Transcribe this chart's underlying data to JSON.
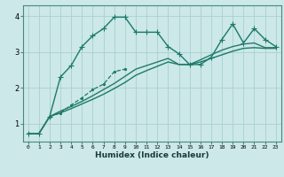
{
  "xlabel": "Humidex (Indice chaleur)",
  "bg_color": "#cce8e8",
  "grid_color": "#aacfcf",
  "xlim": [
    -0.5,
    23.5
  ],
  "ylim": [
    0.5,
    4.3
  ],
  "x_ticks": [
    0,
    1,
    2,
    3,
    4,
    5,
    6,
    7,
    8,
    9,
    10,
    11,
    12,
    13,
    14,
    15,
    16,
    17,
    18,
    19,
    20,
    21,
    22,
    23
  ],
  "y_ticks": [
    1,
    2,
    3,
    4
  ],
  "series": [
    {
      "x": [
        0,
        1,
        2,
        3,
        4,
        5,
        6,
        7,
        8,
        9,
        10,
        11,
        12,
        13,
        14,
        15,
        16,
        17,
        18,
        19,
        20,
        21,
        22,
        23
      ],
      "y": [
        0.72,
        0.72,
        1.2,
        2.3,
        2.62,
        3.15,
        3.45,
        3.65,
        3.97,
        3.97,
        3.55,
        3.55,
        3.55,
        3.15,
        2.95,
        2.65,
        2.65,
        2.85,
        3.35,
        3.78,
        3.25,
        3.65,
        3.35,
        3.15
      ],
      "marker": "+",
      "linestyle": "-",
      "color": "#1a7a6a",
      "linewidth": 1.0,
      "markersize": 4
    },
    {
      "x": [
        2,
        3,
        4,
        5,
        6,
        7,
        8,
        9
      ],
      "y": [
        1.2,
        1.3,
        1.52,
        1.72,
        1.95,
        2.1,
        2.45,
        2.52
      ],
      "marker": ".",
      "linestyle": "--",
      "color": "#1a7a6a",
      "linewidth": 0.9,
      "markersize": 3
    },
    {
      "x": [
        0,
        1,
        2,
        3,
        4,
        5,
        6,
        7,
        8,
        9,
        10,
        11,
        12,
        13,
        14,
        15,
        16,
        17,
        18,
        19,
        20,
        21,
        22,
        23
      ],
      "y": [
        0.72,
        0.72,
        1.2,
        1.3,
        1.42,
        1.55,
        1.68,
        1.82,
        1.98,
        2.15,
        2.35,
        2.48,
        2.6,
        2.72,
        2.65,
        2.65,
        2.72,
        2.82,
        2.92,
        3.02,
        3.1,
        3.12,
        3.1,
        3.1
      ],
      "marker": null,
      "linestyle": "-",
      "color": "#1a7a6a",
      "linewidth": 1.0
    },
    {
      "x": [
        0,
        1,
        2,
        3,
        4,
        5,
        6,
        7,
        8,
        9,
        10,
        11,
        12,
        13,
        14,
        15,
        16,
        17,
        18,
        19,
        20,
        21,
        22,
        23
      ],
      "y": [
        0.72,
        0.72,
        1.2,
        1.35,
        1.48,
        1.62,
        1.78,
        1.95,
        2.12,
        2.32,
        2.52,
        2.62,
        2.72,
        2.82,
        2.65,
        2.65,
        2.78,
        2.92,
        3.05,
        3.15,
        3.22,
        3.25,
        3.12,
        3.12
      ],
      "marker": null,
      "linestyle": "-",
      "color": "#267a6a",
      "linewidth": 1.0
    }
  ]
}
